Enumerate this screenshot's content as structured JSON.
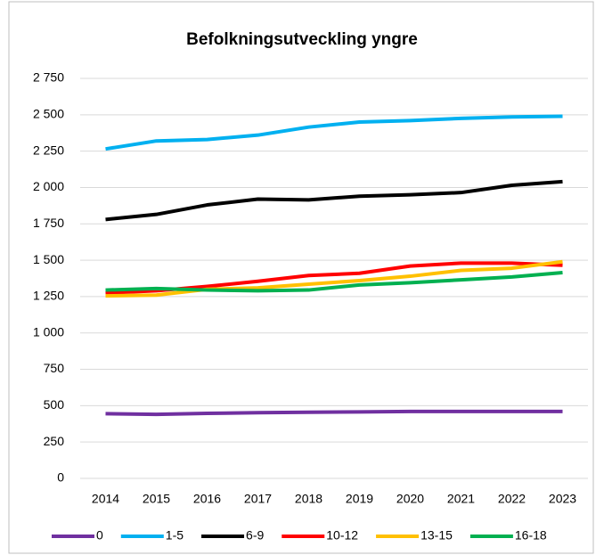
{
  "chart_data": {
    "type": "line",
    "title": "Befolkningsutveckling yngre",
    "categories": [
      "2014",
      "2015",
      "2016",
      "2017",
      "2018",
      "2019",
      "2020",
      "2021",
      "2022",
      "2023"
    ],
    "series": [
      {
        "name": "0",
        "color": "#7030a0",
        "values": [
          445,
          440,
          447,
          452,
          455,
          457,
          460,
          460,
          460,
          460
        ]
      },
      {
        "name": "1-5",
        "color": "#00b0f0",
        "values": [
          2265,
          2320,
          2330,
          2360,
          2415,
          2450,
          2460,
          2475,
          2485,
          2490
        ]
      },
      {
        "name": "6-9",
        "color": "#000000",
        "values": [
          1780,
          1815,
          1880,
          1920,
          1915,
          1940,
          1950,
          1965,
          2015,
          2040
        ]
      },
      {
        "name": "10-12",
        "color": "#ff0000",
        "values": [
          1275,
          1290,
          1320,
          1355,
          1395,
          1410,
          1460,
          1480,
          1480,
          1465
        ]
      },
      {
        "name": "13-15",
        "color": "#ffc000",
        "values": [
          1255,
          1260,
          1300,
          1310,
          1335,
          1360,
          1390,
          1430,
          1445,
          1490
        ]
      },
      {
        "name": "16-18",
        "color": "#00b050",
        "values": [
          1295,
          1305,
          1295,
          1290,
          1295,
          1330,
          1345,
          1365,
          1385,
          1415
        ]
      }
    ],
    "ylim": [
      0,
      2750
    ],
    "yticks": [
      0,
      250,
      500,
      750,
      {
        "value": 1000,
        "label": "1 000"
      },
      {
        "value": 1250,
        "label": "1 250"
      },
      {
        "value": 1500,
        "label": "1 500"
      },
      {
        "value": 1750,
        "label": "1 750"
      },
      {
        "value": 2000,
        "label": "2 000"
      },
      {
        "value": 2250,
        "label": "2 250"
      },
      {
        "value": 2500,
        "label": "2 500"
      },
      {
        "value": 2750,
        "label": "2 750"
      }
    ],
    "grid": true,
    "legend": "bottom"
  }
}
